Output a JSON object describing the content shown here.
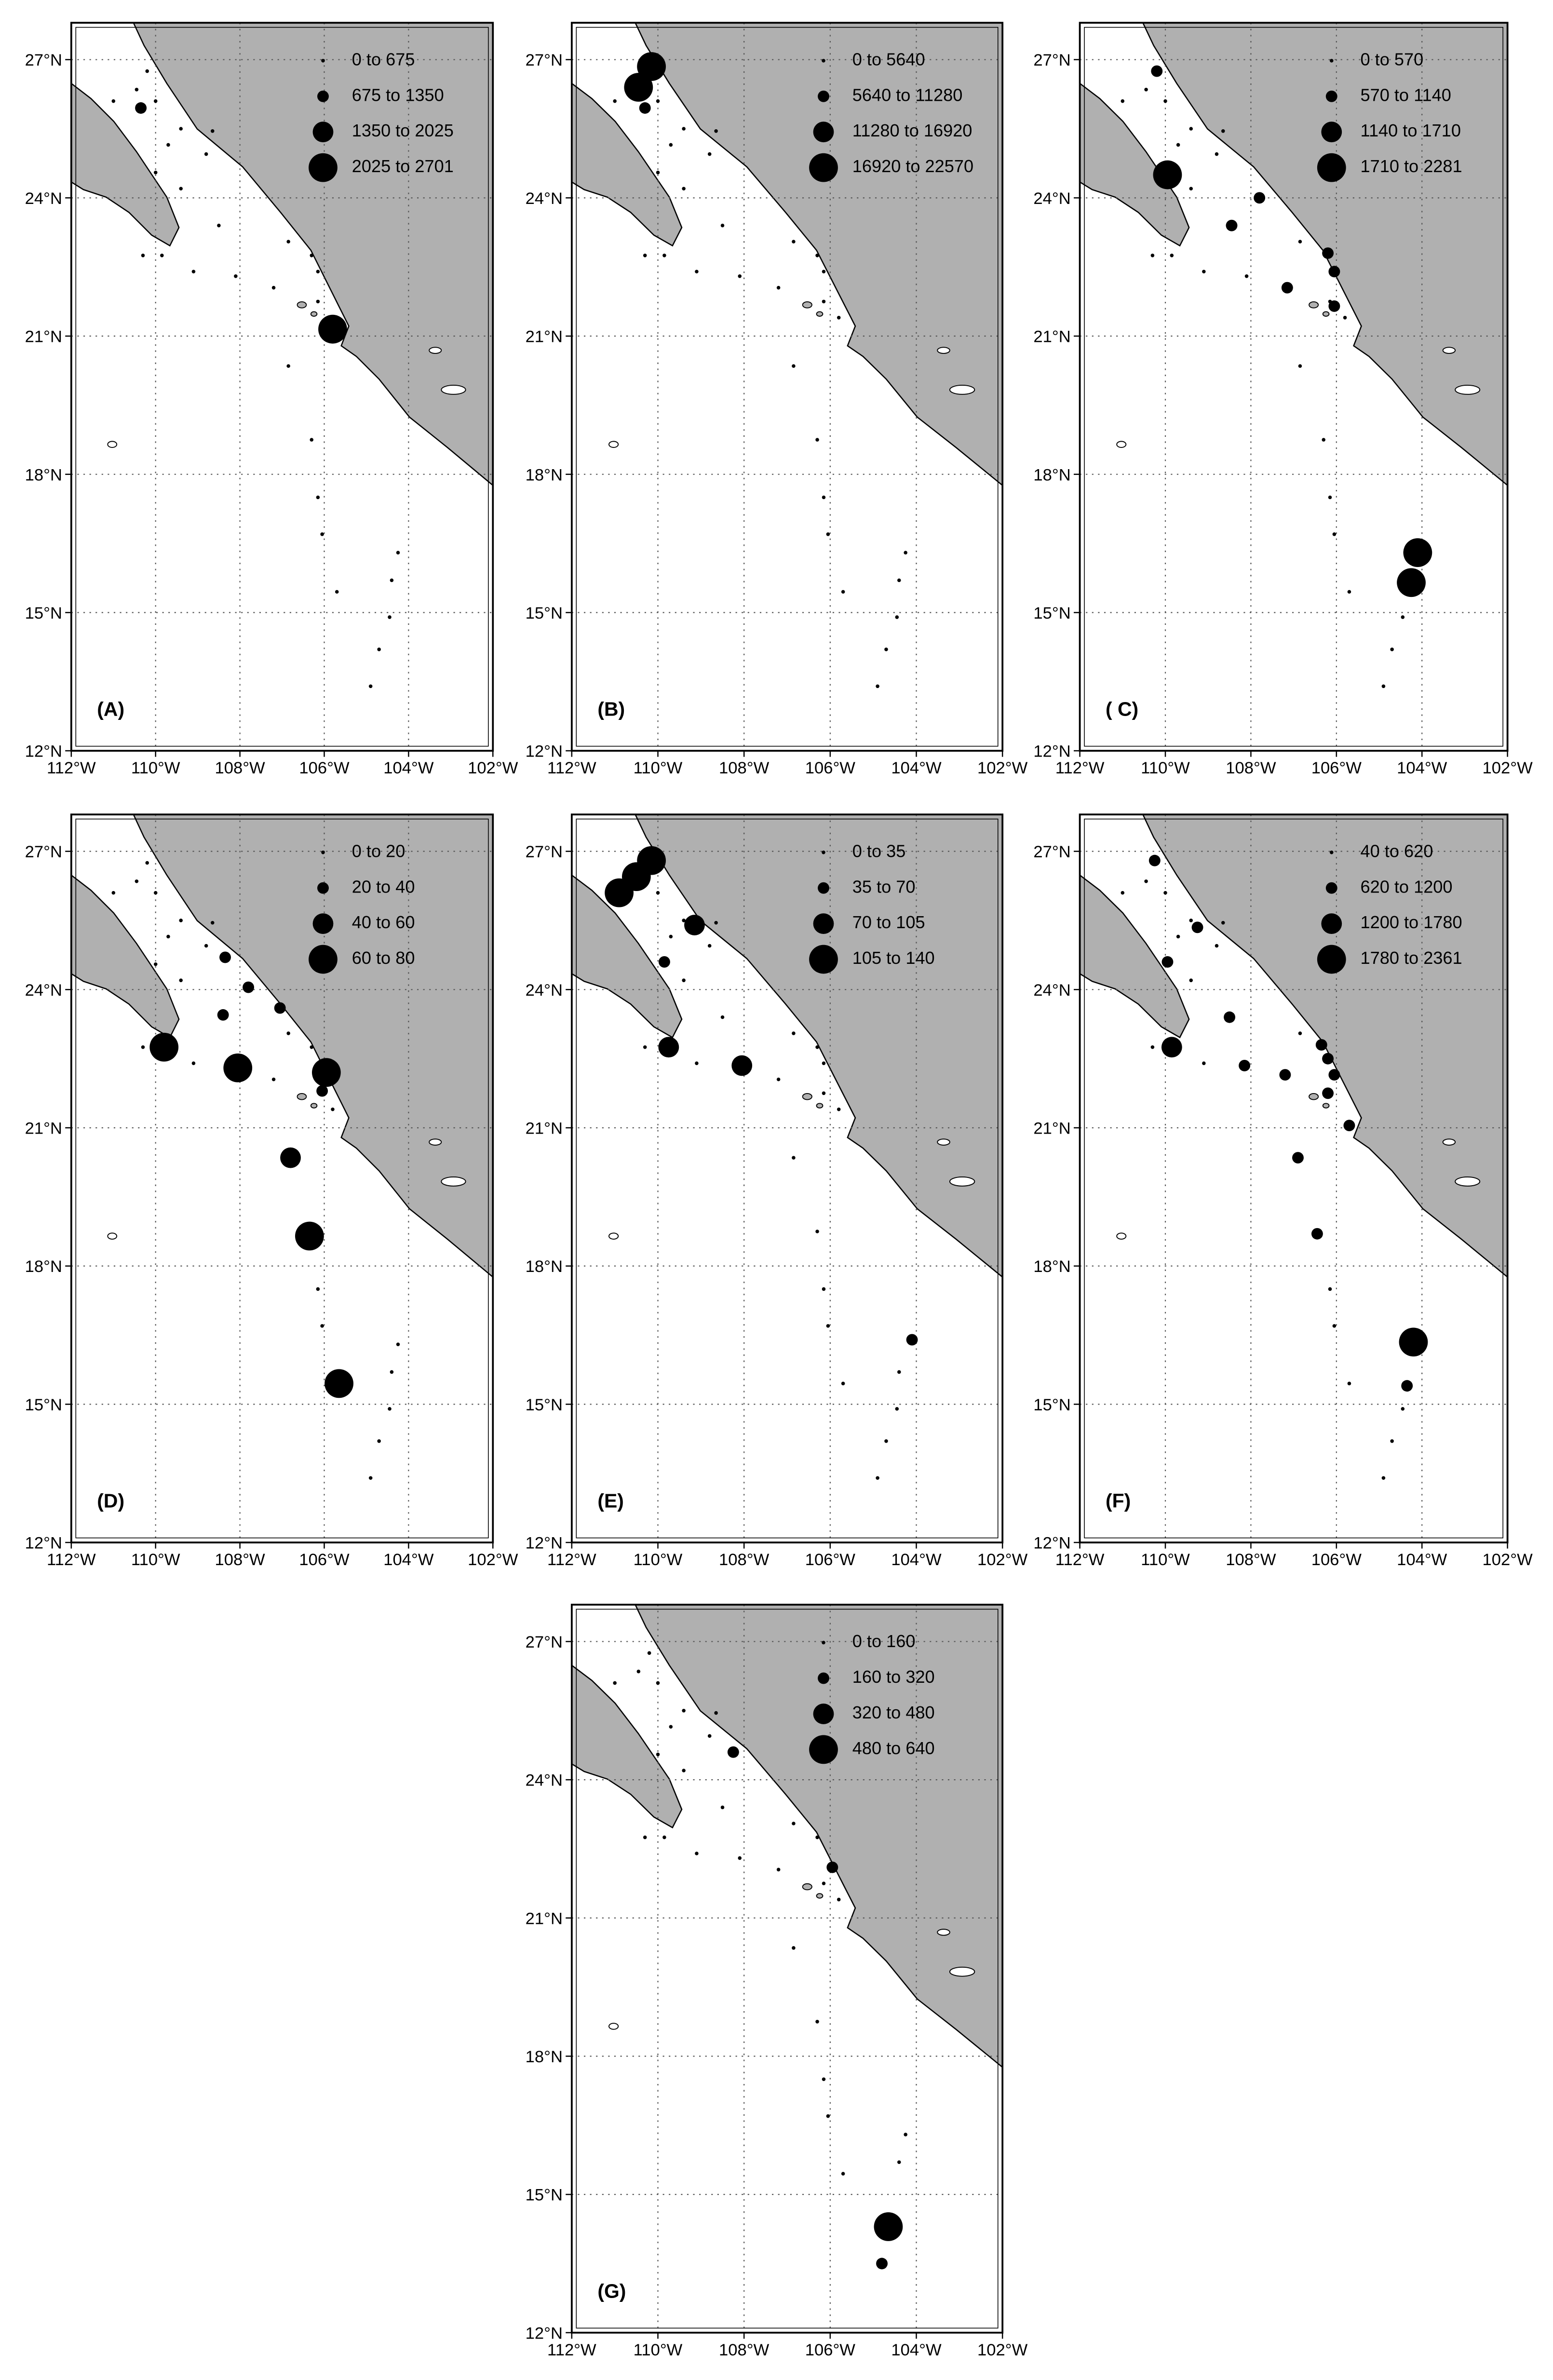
{
  "xlim": [
    -112,
    -102
  ],
  "ylim": [
    12,
    27.8
  ],
  "xticks": [
    {
      "value": -112,
      "label": "112°W"
    },
    {
      "value": -110,
      "label": "110°W"
    },
    {
      "value": -108,
      "label": "108°W"
    },
    {
      "value": -106,
      "label": "106°W"
    },
    {
      "value": -104,
      "label": "104°W"
    },
    {
      "value": -102,
      "label": "102°W"
    }
  ],
  "yticks": [
    {
      "value": 12,
      "label": "12°N"
    },
    {
      "value": 15,
      "label": "15°N"
    },
    {
      "value": 18,
      "label": "18°N"
    },
    {
      "value": 21,
      "label": "21°N"
    },
    {
      "value": 24,
      "label": "24°N"
    },
    {
      "value": 27,
      "label": "27°N"
    }
  ],
  "panels": [
    {
      "label": "(A)",
      "legend": [
        {
          "label": "0 to 675",
          "points": [
            [
              -110.2,
              26.75
            ],
            [
              -110.45,
              26.35
            ],
            [
              -111.0,
              26.1
            ],
            [
              -110.0,
              26.1
            ],
            [
              -109.4,
              25.5
            ],
            [
              -108.65,
              25.45
            ],
            [
              -109.7,
              25.15
            ],
            [
              -108.8,
              24.95
            ],
            [
              -110.0,
              24.55
            ],
            [
              -109.4,
              24.2
            ],
            [
              -108.5,
              23.4
            ],
            [
              -106.85,
              23.05
            ],
            [
              -110.3,
              22.75
            ],
            [
              -109.85,
              22.75
            ],
            [
              -109.1,
              22.4
            ],
            [
              -108.1,
              22.3
            ],
            [
              -107.2,
              22.05
            ],
            [
              -106.3,
              22.75
            ],
            [
              -106.15,
              22.4
            ],
            [
              -106.15,
              21.75
            ],
            [
              -106.85,
              20.35
            ],
            [
              -106.3,
              18.75
            ],
            [
              -106.15,
              17.5
            ],
            [
              -106.05,
              16.7
            ],
            [
              -105.7,
              15.45
            ],
            [
              -104.45,
              14.9
            ],
            [
              -104.4,
              15.7
            ],
            [
              -104.25,
              16.3
            ],
            [
              -104.7,
              14.2
            ],
            [
              -104.9,
              13.4
            ]
          ]
        },
        {
          "label": "675 to 1350",
          "points": [
            [
              -110.35,
              25.95
            ]
          ]
        },
        {
          "label": "1350 to 2025",
          "points": []
        },
        {
          "label": "2025 to 2701",
          "points": [
            [
              -105.8,
              21.15
            ]
          ]
        }
      ]
    },
    {
      "label": "(B)",
      "legend": [
        {
          "label": "0 to 5640",
          "points": [
            [
              -111.0,
              26.1
            ],
            [
              -110.0,
              26.1
            ],
            [
              -109.4,
              25.5
            ],
            [
              -108.65,
              25.45
            ],
            [
              -109.7,
              25.15
            ],
            [
              -108.8,
              24.95
            ],
            [
              -110.0,
              24.55
            ],
            [
              -109.4,
              24.2
            ],
            [
              -108.5,
              23.4
            ],
            [
              -106.85,
              23.05
            ],
            [
              -110.3,
              22.75
            ],
            [
              -109.85,
              22.75
            ],
            [
              -109.1,
              22.4
            ],
            [
              -108.1,
              22.3
            ],
            [
              -107.2,
              22.05
            ],
            [
              -106.3,
              22.75
            ],
            [
              -106.15,
              22.4
            ],
            [
              -106.15,
              21.75
            ],
            [
              -105.8,
              21.4
            ],
            [
              -106.85,
              20.35
            ],
            [
              -106.3,
              18.75
            ],
            [
              -106.15,
              17.5
            ],
            [
              -106.05,
              16.7
            ],
            [
              -105.7,
              15.45
            ],
            [
              -104.45,
              14.9
            ],
            [
              -104.4,
              15.7
            ],
            [
              -104.25,
              16.3
            ],
            [
              -104.7,
              14.2
            ],
            [
              -104.9,
              13.4
            ]
          ]
        },
        {
          "label": "5640 to 11280",
          "points": [
            [
              -110.3,
              25.95
            ]
          ]
        },
        {
          "label": "11280 to 16920",
          "points": []
        },
        {
          "label": "16920 to 22570",
          "points": [
            [
              -110.15,
              26.85
            ],
            [
              -110.45,
              26.4
            ]
          ]
        }
      ]
    },
    {
      "label": "( C)",
      "legend": [
        {
          "label": "0 to 570",
          "points": [
            [
              -110.45,
              26.35
            ],
            [
              -111.0,
              26.1
            ],
            [
              -110.0,
              26.1
            ],
            [
              -109.4,
              25.5
            ],
            [
              -108.65,
              25.45
            ],
            [
              -109.7,
              25.15
            ],
            [
              -108.8,
              24.95
            ],
            [
              -109.4,
              24.2
            ],
            [
              -106.85,
              23.05
            ],
            [
              -110.3,
              22.75
            ],
            [
              -109.85,
              22.75
            ],
            [
              -109.1,
              22.4
            ],
            [
              -108.1,
              22.3
            ],
            [
              -106.15,
              21.75
            ],
            [
              -105.8,
              21.4
            ],
            [
              -106.85,
              20.35
            ],
            [
              -106.3,
              18.75
            ],
            [
              -106.15,
              17.5
            ],
            [
              -106.05,
              16.7
            ],
            [
              -105.7,
              15.45
            ],
            [
              -104.45,
              14.9
            ],
            [
              -104.7,
              14.2
            ],
            [
              -104.9,
              13.4
            ]
          ]
        },
        {
          "label": "570 to 1140",
          "points": [
            [
              -110.2,
              26.75
            ],
            [
              -107.8,
              24.0
            ],
            [
              -108.45,
              23.4
            ],
            [
              -107.15,
              22.05
            ],
            [
              -106.2,
              22.8
            ],
            [
              -106.05,
              22.4
            ],
            [
              -106.05,
              21.65
            ]
          ]
        },
        {
          "label": "1140 to 1710",
          "points": []
        },
        {
          "label": "1710 to 2281",
          "points": [
            [
              -109.95,
              24.5
            ],
            [
              -104.1,
              16.3
            ],
            [
              -104.25,
              15.65
            ]
          ]
        }
      ]
    },
    {
      "label": "(D)",
      "legend": [
        {
          "label": "0 to 20",
          "points": [
            [
              -110.2,
              26.75
            ],
            [
              -110.45,
              26.35
            ],
            [
              -111.0,
              26.1
            ],
            [
              -110.0,
              26.1
            ],
            [
              -109.4,
              25.5
            ],
            [
              -108.65,
              25.45
            ],
            [
              -109.7,
              25.15
            ],
            [
              -108.8,
              24.95
            ],
            [
              -110.0,
              24.55
            ],
            [
              -109.4,
              24.2
            ],
            [
              -106.85,
              23.05
            ],
            [
              -110.3,
              22.75
            ],
            [
              -109.1,
              22.4
            ],
            [
              -107.2,
              22.05
            ],
            [
              -106.3,
              22.75
            ],
            [
              -105.8,
              21.4
            ],
            [
              -106.15,
              17.5
            ],
            [
              -106.05,
              16.7
            ],
            [
              -104.45,
              14.9
            ],
            [
              -104.4,
              15.7
            ],
            [
              -104.25,
              16.3
            ],
            [
              -104.7,
              14.2
            ],
            [
              -104.9,
              13.4
            ]
          ]
        },
        {
          "label": "20 to 40",
          "points": [
            [
              -108.35,
              24.7
            ],
            [
              -107.8,
              24.05
            ],
            [
              -108.4,
              23.45
            ],
            [
              -107.05,
              23.6
            ],
            [
              -106.05,
              21.8
            ]
          ]
        },
        {
          "label": "40 to 60",
          "points": [
            [
              -106.8,
              20.35
            ]
          ]
        },
        {
          "label": "60 to 80",
          "points": [
            [
              -109.8,
              22.75
            ],
            [
              -108.05,
              22.3
            ],
            [
              -105.95,
              22.2
            ],
            [
              -106.35,
              18.65
            ],
            [
              -105.65,
              15.45
            ]
          ]
        }
      ]
    },
    {
      "label": "(E)",
      "legend": [
        {
          "label": "0 to 35",
          "points": [
            [
              -110.0,
              26.1
            ],
            [
              -109.4,
              25.5
            ],
            [
              -108.65,
              25.45
            ],
            [
              -109.7,
              25.15
            ],
            [
              -108.8,
              24.95
            ],
            [
              -109.4,
              24.2
            ],
            [
              -108.5,
              23.4
            ],
            [
              -106.85,
              23.05
            ],
            [
              -110.3,
              22.75
            ],
            [
              -109.1,
              22.4
            ],
            [
              -107.2,
              22.05
            ],
            [
              -106.3,
              22.75
            ],
            [
              -106.15,
              22.4
            ],
            [
              -106.15,
              21.75
            ],
            [
              -105.8,
              21.4
            ],
            [
              -106.85,
              20.35
            ],
            [
              -106.3,
              18.75
            ],
            [
              -106.15,
              17.5
            ],
            [
              -106.05,
              16.7
            ],
            [
              -105.7,
              15.45
            ],
            [
              -104.45,
              14.9
            ],
            [
              -104.4,
              15.7
            ],
            [
              -104.7,
              14.2
            ],
            [
              -104.9,
              13.4
            ]
          ]
        },
        {
          "label": "35 to 70",
          "points": [
            [
              -109.85,
              24.6
            ],
            [
              -104.1,
              16.4
            ]
          ]
        },
        {
          "label": "70 to 105",
          "points": [
            [
              -109.15,
              25.4
            ],
            [
              -109.75,
              22.75
            ],
            [
              -108.05,
              22.35
            ]
          ]
        },
        {
          "label": "105 to 140",
          "points": [
            [
              -110.9,
              26.1
            ],
            [
              -110.5,
              26.45
            ],
            [
              -110.15,
              26.8
            ]
          ]
        }
      ]
    },
    {
      "label": "(F)",
      "legend": [
        {
          "label": "40 to 620",
          "points": [
            [
              -110.45,
              26.35
            ],
            [
              -111.0,
              26.1
            ],
            [
              -110.0,
              26.1
            ],
            [
              -109.4,
              25.5
            ],
            [
              -108.65,
              25.45
            ],
            [
              -109.7,
              25.15
            ],
            [
              -108.8,
              24.95
            ],
            [
              -109.4,
              24.2
            ],
            [
              -106.85,
              23.05
            ],
            [
              -110.3,
              22.75
            ],
            [
              -109.1,
              22.4
            ],
            [
              -106.15,
              17.5
            ],
            [
              -106.05,
              16.7
            ],
            [
              -105.7,
              15.45
            ],
            [
              -104.45,
              14.9
            ],
            [
              -104.7,
              14.2
            ],
            [
              -104.9,
              13.4
            ]
          ]
        },
        {
          "label": "620 to 1200",
          "points": [
            [
              -110.25,
              26.8
            ],
            [
              -109.25,
              25.35
            ],
            [
              -109.95,
              24.6
            ],
            [
              -108.5,
              23.4
            ],
            [
              -108.15,
              22.35
            ],
            [
              -107.2,
              22.15
            ],
            [
              -106.35,
              22.8
            ],
            [
              -106.2,
              22.5
            ],
            [
              -106.05,
              22.15
            ],
            [
              -106.2,
              21.75
            ],
            [
              -105.7,
              21.05
            ],
            [
              -106.9,
              20.35
            ],
            [
              -106.45,
              18.7
            ],
            [
              -104.35,
              15.4
            ]
          ]
        },
        {
          "label": "1200 to 1780",
          "points": [
            [
              -109.85,
              22.75
            ]
          ]
        },
        {
          "label": "1780 to 2361",
          "points": [
            [
              -104.2,
              16.35
            ]
          ]
        }
      ]
    },
    {
      "label": "(G)",
      "legend": [
        {
          "label": "0 to 160",
          "points": [
            [
              -110.2,
              26.75
            ],
            [
              -110.45,
              26.35
            ],
            [
              -111.0,
              26.1
            ],
            [
              -110.0,
              26.1
            ],
            [
              -109.4,
              25.5
            ],
            [
              -108.65,
              25.45
            ],
            [
              -109.7,
              25.15
            ],
            [
              -108.8,
              24.95
            ],
            [
              -110.0,
              24.55
            ],
            [
              -109.4,
              24.2
            ],
            [
              -108.5,
              23.4
            ],
            [
              -106.85,
              23.05
            ],
            [
              -110.3,
              22.75
            ],
            [
              -109.85,
              22.75
            ],
            [
              -109.1,
              22.4
            ],
            [
              -108.1,
              22.3
            ],
            [
              -107.2,
              22.05
            ],
            [
              -106.3,
              22.75
            ],
            [
              -106.15,
              21.75
            ],
            [
              -105.8,
              21.4
            ],
            [
              -106.85,
              20.35
            ],
            [
              -106.3,
              18.75
            ],
            [
              -106.15,
              17.5
            ],
            [
              -106.05,
              16.7
            ],
            [
              -105.7,
              15.45
            ],
            [
              -104.4,
              15.7
            ],
            [
              -104.25,
              16.3
            ]
          ]
        },
        {
          "label": "160 to 320",
          "points": [
            [
              -104.8,
              13.5
            ],
            [
              -108.25,
              24.6
            ],
            [
              -105.95,
              22.1
            ]
          ]
        },
        {
          "label": "320 to 480",
          "points": []
        },
        {
          "label": "480 to 640",
          "points": [
            [
              -104.65,
              14.3
            ]
          ]
        }
      ]
    }
  ]
}
